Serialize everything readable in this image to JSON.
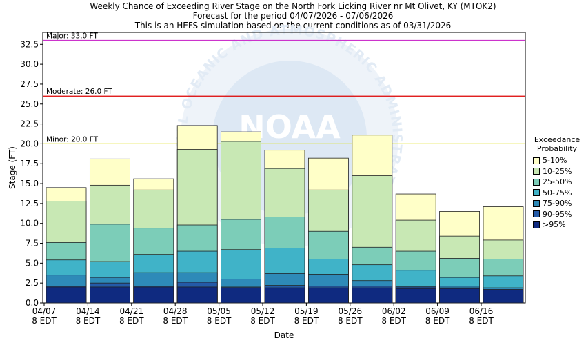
{
  "header": {
    "line1": "Weekly Chance of Exceeding River Stage on the North Fork Licking River nr Mt Olivet, KY (MTOK2)",
    "line2": "Forecast for the period 04/07/2026 - 07/06/2026",
    "line3": "This is an HEFS simulation based on the current conditions as of 03/31/2026"
  },
  "watermark": {
    "logo_text": "NOAA",
    "arc_text": "NATIONAL OCEANIC AND ATMOSPHERIC ADMINISTRATION"
  },
  "chart_data": {
    "type": "bar",
    "xlabel": "Date",
    "ylabel": "Stage (FT)",
    "ylim": [
      0,
      34
    ],
    "yticks": [
      "0.0",
      "2.5",
      "5.0",
      "7.5",
      "10.0",
      "12.5",
      "15.0",
      "17.5",
      "20.0",
      "22.5",
      "25.0",
      "27.5",
      "30.0",
      "32.5"
    ],
    "categories": [
      [
        "04/07",
        "8 EDT"
      ],
      [
        "04/14",
        "8 EDT"
      ],
      [
        "04/21",
        "8 EDT"
      ],
      [
        "04/28",
        "8 EDT"
      ],
      [
        "05/05",
        "8 EDT"
      ],
      [
        "05/12",
        "8 EDT"
      ],
      [
        "05/19",
        "8 EDT"
      ],
      [
        "05/26",
        "8 EDT"
      ],
      [
        "06/02",
        "8 EDT"
      ],
      [
        "06/09",
        "8 EDT"
      ],
      [
        "06/16",
        "8 EDT"
      ]
    ],
    "thresholds": [
      {
        "label": "Major: 33.0 FT",
        "value": 33.0,
        "color": "#cc33cc"
      },
      {
        "label": "Moderate: 26.0 FT",
        "value": 26.0,
        "color": "#dd0000"
      },
      {
        "label": "Minor: 20.0 FT",
        "value": 20.0,
        "color": "#dddd00"
      }
    ],
    "legend_title": [
      "Exceedance",
      "Probability"
    ],
    "series": [
      {
        "name": ">95%",
        "color": "#0f2a80",
        "values": [
          2.0,
          2.0,
          2.0,
          2.0,
          1.9,
          1.9,
          1.9,
          1.9,
          1.8,
          1.8,
          1.6
        ]
      },
      {
        "name": "90-95%",
        "color": "#245aa8",
        "values": [
          2.1,
          2.5,
          2.1,
          2.6,
          2.0,
          2.2,
          2.1,
          2.1,
          2.0,
          1.9,
          1.7
        ]
      },
      {
        "name": "75-90%",
        "color": "#2e8ab8",
        "values": [
          3.5,
          3.2,
          3.8,
          3.8,
          3.0,
          3.7,
          3.6,
          2.8,
          2.1,
          2.1,
          1.9
        ]
      },
      {
        "name": "50-75%",
        "color": "#40b3c8",
        "values": [
          5.4,
          5.2,
          6.1,
          6.5,
          6.7,
          6.9,
          5.5,
          4.8,
          4.1,
          3.2,
          3.4
        ]
      },
      {
        "name": "25-50%",
        "color": "#7ccdb8",
        "values": [
          7.6,
          9.9,
          9.4,
          9.8,
          10.5,
          10.8,
          9.0,
          7.0,
          6.5,
          5.6,
          5.5
        ]
      },
      {
        "name": "10-25%",
        "color": "#c8e8b4",
        "values": [
          12.8,
          14.8,
          14.2,
          19.3,
          20.3,
          16.9,
          14.2,
          16.0,
          10.4,
          8.4,
          7.9
        ]
      },
      {
        "name": "5-10%",
        "color": "#ffffc8",
        "values": [
          14.5,
          18.1,
          15.6,
          22.3,
          21.5,
          19.2,
          18.2,
          21.1,
          13.7,
          11.5,
          12.1
        ]
      }
    ]
  }
}
